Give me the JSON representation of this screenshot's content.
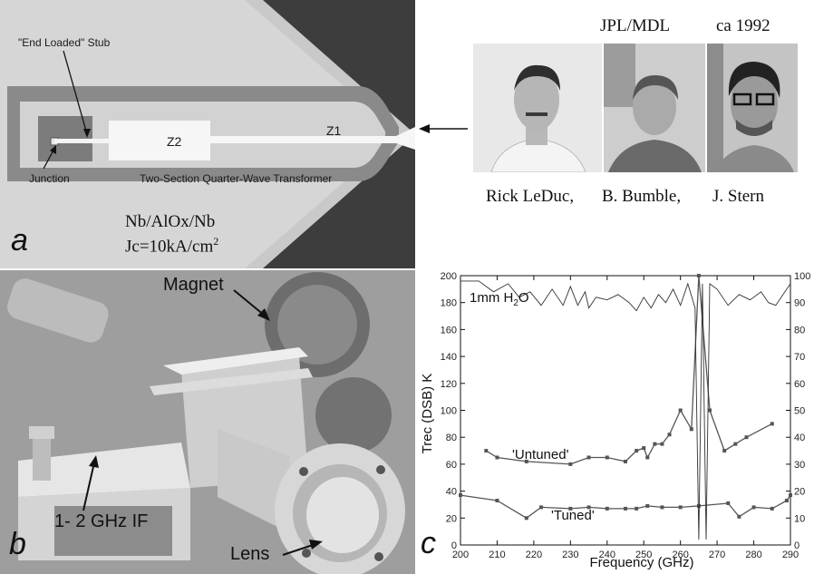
{
  "panel_a": {
    "letter": "a",
    "stub_label": "\"End Loaded\" Stub",
    "z2_label": "Z2",
    "z1_label": "Z1",
    "junction_label": "Junction",
    "transformer_label": "Two-Section Quarter-Wave Transformer",
    "material": "Nb/AlOx/Nb",
    "jc_prefix": "Jc=10kA/cm",
    "jc_sup": "2"
  },
  "people": {
    "group": "JPL/MDL",
    "year": "ca 1992",
    "names": [
      "Rick LeDuc,",
      "B. Bumble,",
      "J. Stern"
    ]
  },
  "panel_b": {
    "letter": "b",
    "magnet_label": "Magnet",
    "if_label": "1- 2 GHz IF",
    "lens_label": "Lens"
  },
  "panel_c": {
    "letter": "c",
    "ylabel": "Trec (DSB) K",
    "atm_label_pre": "1mm H",
    "atm_label_sub": "2",
    "atm_label_post": "O"
  },
  "chart_data": {
    "type": "line",
    "xlabel": "Frequency (GHz)",
    "ylabel": "Trec (DSB) K",
    "xlim": [
      200,
      290
    ],
    "ylim": [
      0,
      200
    ],
    "y2lim": [
      0,
      100
    ],
    "x_ticks": [
      200,
      210,
      220,
      230,
      240,
      250,
      260,
      270,
      280,
      290
    ],
    "y_ticks": [
      0,
      20,
      40,
      60,
      80,
      100,
      120,
      140,
      160,
      180,
      200
    ],
    "y2_ticks": [
      0,
      10,
      20,
      30,
      40,
      50,
      60,
      70,
      80,
      90,
      100
    ],
    "grid": false,
    "series": [
      {
        "name": "'Untuned'",
        "x": [
          207,
          210,
          218,
          230,
          235,
          240,
          245,
          248,
          250,
          251,
          253,
          255,
          257,
          260,
          263,
          265,
          268,
          272,
          275,
          278,
          285
        ],
        "y": [
          70,
          65,
          62,
          60,
          65,
          65,
          62,
          70,
          72,
          65,
          75,
          75,
          82,
          100,
          86,
          200,
          100,
          70,
          75,
          80,
          90
        ]
      },
      {
        "name": "'Tuned'",
        "x": [
          200,
          210,
          218,
          222,
          230,
          235,
          240,
          245,
          248,
          251,
          255,
          260,
          265,
          273,
          276,
          280,
          285,
          289,
          290
        ],
        "y": [
          37,
          33,
          20,
          28,
          27,
          28,
          27,
          27,
          27,
          29,
          28,
          28,
          29,
          31,
          21,
          28,
          27,
          33,
          37
        ]
      },
      {
        "name": "1mm H2O",
        "axis": "right",
        "x": [
          200,
          205,
          209,
          213,
          216,
          219,
          222,
          225,
          228,
          230,
          232,
          234,
          235,
          237,
          240,
          243,
          246,
          248,
          250,
          252,
          254,
          256,
          258,
          260,
          262,
          264,
          265,
          266,
          267,
          268,
          270,
          273,
          276,
          279,
          282,
          284,
          286,
          288,
          290
        ],
        "y": [
          98,
          98,
          94,
          97,
          92,
          94,
          89,
          95,
          89,
          96,
          89,
          94,
          88,
          92,
          91,
          93,
          90,
          87,
          92,
          88,
          93,
          90,
          95,
          89,
          97,
          88,
          2,
          97,
          2,
          97,
          95,
          89,
          93,
          91,
          94,
          90,
          89,
          93,
          97
        ]
      }
    ]
  }
}
